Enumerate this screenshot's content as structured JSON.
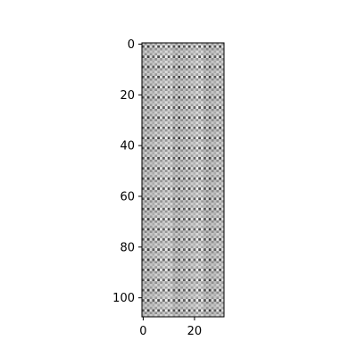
{
  "chart_data": {
    "type": "heatmap",
    "colormap": "gray",
    "rows": 108,
    "cols": 32,
    "pattern": {
      "description": "periodic grayscale lattice of small dark and light spots repeating every 4 rows and 4 columns",
      "period_rows": 4,
      "period_cols": 4
    },
    "x_ticks": [
      0,
      20
    ],
    "y_ticks": [
      0,
      20,
      40,
      60,
      80,
      100
    ],
    "xlim": [
      -0.5,
      31.5
    ],
    "ylim": [
      107.5,
      -0.5
    ],
    "grid": false,
    "legend": "none"
  }
}
